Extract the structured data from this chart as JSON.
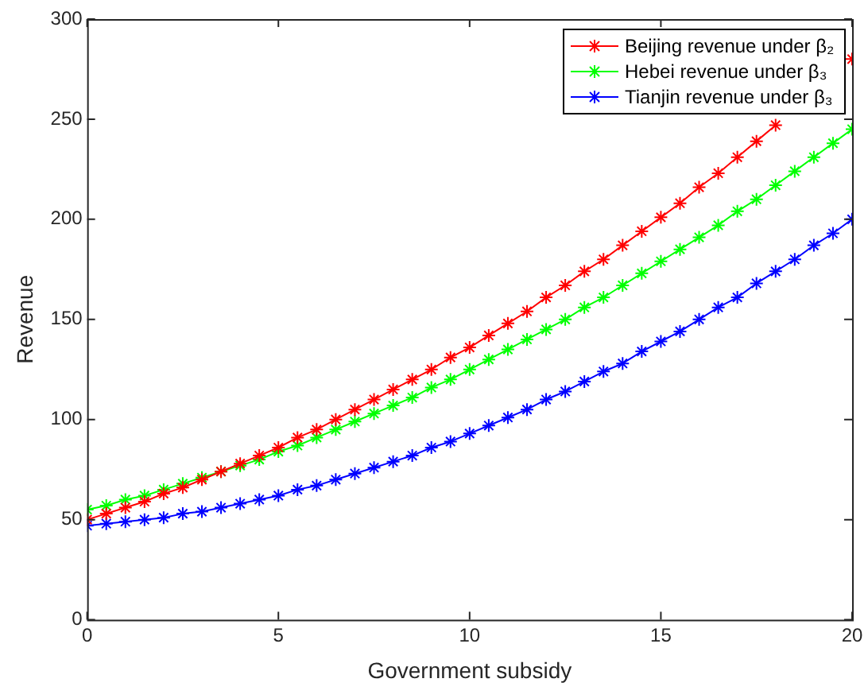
{
  "chart_data": {
    "type": "line",
    "xlabel": "Government subsidy",
    "ylabel": "Revenue",
    "x": [
      0,
      0.5,
      1,
      1.5,
      2,
      2.5,
      3,
      3.5,
      4,
      4.5,
      5,
      5.5,
      6,
      6.5,
      7,
      7.5,
      8,
      8.5,
      9,
      9.5,
      10,
      10.5,
      11,
      11.5,
      12,
      12.5,
      13,
      13.5,
      14,
      14.5,
      15,
      15.5,
      16,
      16.5,
      17,
      17.5,
      18,
      18.5,
      19,
      19.5,
      20
    ],
    "series": [
      {
        "name": "Beijing revenue under β₂",
        "color": "#ff0000",
        "values": [
          50,
          53,
          56,
          59,
          63,
          66,
          70,
          74,
          78,
          82,
          86,
          91,
          95,
          100,
          105,
          110,
          115,
          120,
          125,
          131,
          136,
          142,
          148,
          154,
          161,
          167,
          174,
          180,
          187,
          194,
          201,
          208,
          216,
          223,
          231,
          239,
          247,
          null,
          null,
          null,
          280
        ]
      },
      {
        "name": "Hebei revenue under β₃",
        "color": "#00ff00",
        "values": [
          55,
          57,
          60,
          62,
          65,
          68,
          71,
          74,
          77,
          80,
          84,
          87,
          91,
          95,
          99,
          103,
          107,
          111,
          116,
          120,
          125,
          130,
          135,
          140,
          145,
          150,
          156,
          161,
          167,
          173,
          179,
          185,
          191,
          197,
          204,
          210,
          217,
          224,
          231,
          238,
          245
        ]
      },
      {
        "name": "Tianjin revenue under β₃",
        "color": "#0000ff",
        "values": [
          47,
          48,
          49,
          50,
          51,
          53,
          54,
          56,
          58,
          60,
          62,
          65,
          67,
          70,
          73,
          76,
          79,
          82,
          86,
          89,
          93,
          97,
          101,
          105,
          110,
          114,
          119,
          124,
          128,
          134,
          139,
          144,
          150,
          156,
          161,
          168,
          174,
          180,
          187,
          193,
          200
        ]
      }
    ],
    "xlim": [
      0,
      20
    ],
    "xticks": [
      0,
      5,
      10,
      15,
      20
    ],
    "ylim": [
      0,
      300
    ],
    "yticks": [
      0,
      50,
      100,
      150,
      200,
      250,
      300
    ],
    "grid": false,
    "legend": "top right",
    "marker": "cross",
    "line_style": "solid"
  }
}
